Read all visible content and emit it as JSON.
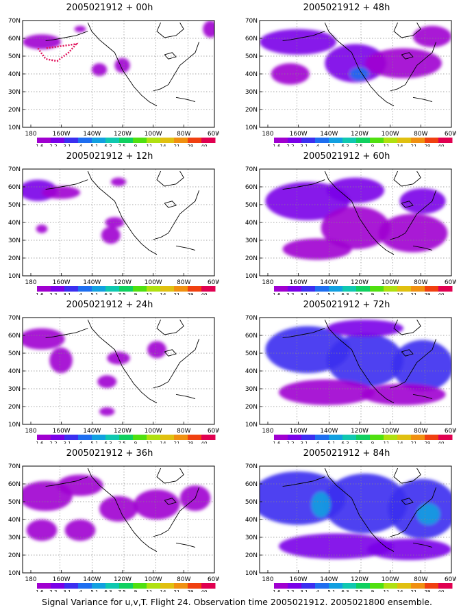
{
  "panels": [
    {
      "title": "2005021912 + 00h",
      "hour": 0
    },
    {
      "title": "2005021912 + 48h",
      "hour": 48
    },
    {
      "title": "2005021912 + 12h",
      "hour": 12
    },
    {
      "title": "2005021912 + 60h",
      "hour": 60
    },
    {
      "title": "2005021912 + 24h",
      "hour": 24
    },
    {
      "title": "2005021912 + 72h",
      "hour": 72
    },
    {
      "title": "2005021912 + 36h",
      "hour": 36
    },
    {
      "title": "2005021912 + 84h",
      "hour": 84
    }
  ],
  "lat_labels": [
    "70N",
    "60N",
    "50N",
    "40N",
    "30N",
    "20N",
    "10N"
  ],
  "lon_labels": [
    "180",
    "160W",
    "140W",
    "120W",
    "100W",
    "80W",
    "60W"
  ],
  "colorbar": {
    "labels": [
      "1.6",
      "2.2",
      "3.1",
      "4",
      "5.1",
      "6.3",
      "7.5",
      "9",
      "11",
      "14",
      "21",
      "29",
      "40"
    ],
    "colors": [
      "#a000d0",
      "#7a00e8",
      "#3c2ff0",
      "#1e6ef0",
      "#12a0e0",
      "#10c8b0",
      "#10d060",
      "#50e010",
      "#b0e010",
      "#e0c010",
      "#f09010",
      "#f04010",
      "#e00050"
    ]
  },
  "track_color": "#e0105a",
  "caption": "Signal Variance for u,v,T. Flight 24. Observation time 2005021912. 2005021800 ensemble."
}
